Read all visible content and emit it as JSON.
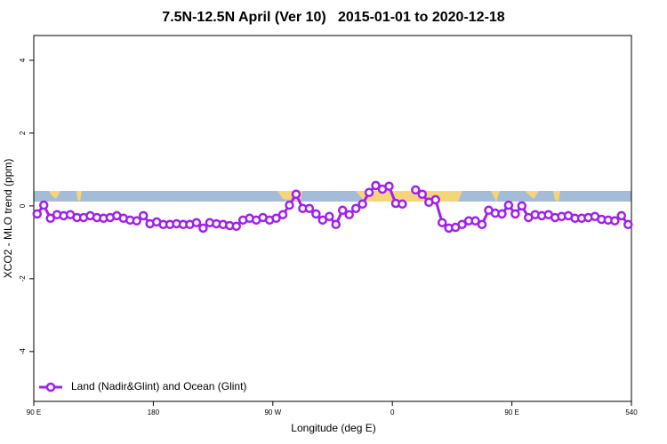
{
  "chart_data": {
    "type": "line",
    "title": "7.5N-12.5N April (Ver 10)   2015-01-01 to 2020-12-18",
    "x_label": "Longitude (deg E)",
    "y_label": "XCO2 - MLO trend (ppm)",
    "x": [
      92.5,
      97.5,
      102.5,
      107.5,
      112.5,
      117.5,
      122.5,
      127.5,
      132.5,
      137.5,
      142.5,
      147.5,
      152.5,
      157.5,
      162.5,
      167.5,
      172.5,
      177.5,
      182.5,
      187.5,
      192.5,
      197.5,
      202.5,
      207.5,
      212.5,
      217.5,
      222.5,
      227.5,
      232.5,
      237.5,
      242.5,
      247.5,
      252.5,
      257.5,
      262.5,
      267.5,
      272.5,
      277.5,
      282.5,
      287.5,
      292.5,
      297.5,
      302.5,
      307.5,
      312.5,
      317.5,
      322.5,
      327.5,
      332.5,
      337.5,
      342.5,
      347.5,
      352.5,
      357.5,
      362.5,
      367.5,
      372.5,
      377.5,
      382.5,
      387.5,
      392.5,
      397.5,
      402.5,
      407.5,
      412.5,
      417.5,
      422.5,
      427.5,
      432.5,
      437.5,
      442.5,
      447.5,
      452.5,
      457.5,
      462.5,
      467.5,
      472.5,
      477.5,
      482.5,
      487.5,
      492.5,
      497.5,
      502.5,
      507.5,
      512.5,
      517.5,
      522.5,
      527.5,
      532.5,
      537.5
    ],
    "series": [
      {
        "name": "Land (Nadir&Glint) and Ocean (Glint)",
        "color": "#a020f0",
        "values": [
          -0.22,
          0.02,
          -0.34,
          -0.24,
          -0.27,
          -0.24,
          -0.32,
          -0.32,
          -0.27,
          -0.32,
          -0.34,
          -0.32,
          -0.27,
          -0.34,
          -0.39,
          -0.41,
          -0.27,
          -0.49,
          -0.44,
          -0.51,
          -0.51,
          -0.49,
          -0.51,
          -0.51,
          -0.46,
          -0.61,
          -0.46,
          -0.49,
          -0.51,
          -0.54,
          -0.56,
          -0.39,
          -0.34,
          -0.39,
          -0.32,
          -0.39,
          -0.34,
          -0.24,
          0.02,
          0.32,
          -0.07,
          -0.07,
          -0.22,
          -0.39,
          -0.29,
          -0.51,
          -0.12,
          -0.24,
          -0.07,
          0.05,
          0.37,
          0.56,
          0.46,
          0.54,
          0.07,
          0.05,
          null,
          0.44,
          0.32,
          0.1,
          0.17,
          -0.46,
          -0.61,
          -0.59,
          -0.51,
          -0.41,
          -0.41,
          -0.51,
          -0.12,
          -0.2,
          -0.22,
          0.02,
          -0.22,
          0.0,
          -0.32,
          -0.24,
          -0.27,
          -0.24,
          -0.32,
          -0.29,
          -0.27,
          -0.34,
          -0.34,
          -0.32,
          -0.29,
          -0.37,
          -0.39,
          -0.41,
          -0.27,
          -0.51
        ]
      }
    ],
    "xlim": [
      90,
      540
    ],
    "xticks": [
      {
        "value": 90,
        "label": "90 E"
      },
      180,
      {
        "value": 270,
        "label": "90 W"
      },
      {
        "value": 360,
        "label": "0"
      },
      {
        "value": 450,
        "label": "90 E"
      },
      540
    ],
    "ylim": [
      -5.37,
      4.68
    ],
    "yticks": [
      -4,
      -2,
      0,
      2,
      4
    ],
    "legend": "bottom-left"
  }
}
